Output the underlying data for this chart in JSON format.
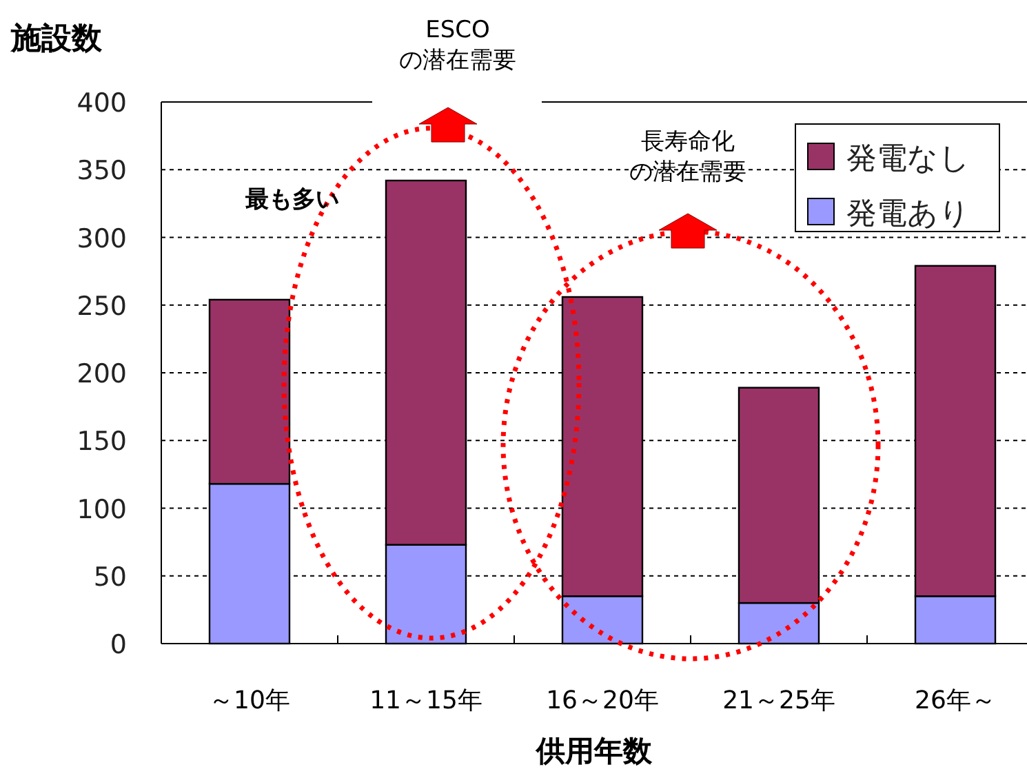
{
  "chart_data": {
    "type": "bar",
    "stacked": true,
    "ylabel": "施設数",
    "xlabel": "供用年数",
    "categories": [
      "～10年",
      "11～15年",
      "16～20年",
      "21～25年",
      "26年～"
    ],
    "series": [
      {
        "name": "発電あり",
        "color": "#9999ff",
        "values": [
          118,
          73,
          35,
          30,
          35
        ]
      },
      {
        "name": "発電なし",
        "color": "#993366",
        "values": [
          136,
          269,
          221,
          159,
          244
        ]
      }
    ],
    "ylim": [
      0,
      400
    ],
    "yticks": [
      0,
      50,
      100,
      150,
      200,
      250,
      300,
      350,
      400
    ],
    "grid": "y",
    "legend": "top right",
    "annotations": [
      "ESCO",
      "の潜在需要",
      "最も多い",
      "長寿命化",
      "の潜在需要"
    ]
  }
}
